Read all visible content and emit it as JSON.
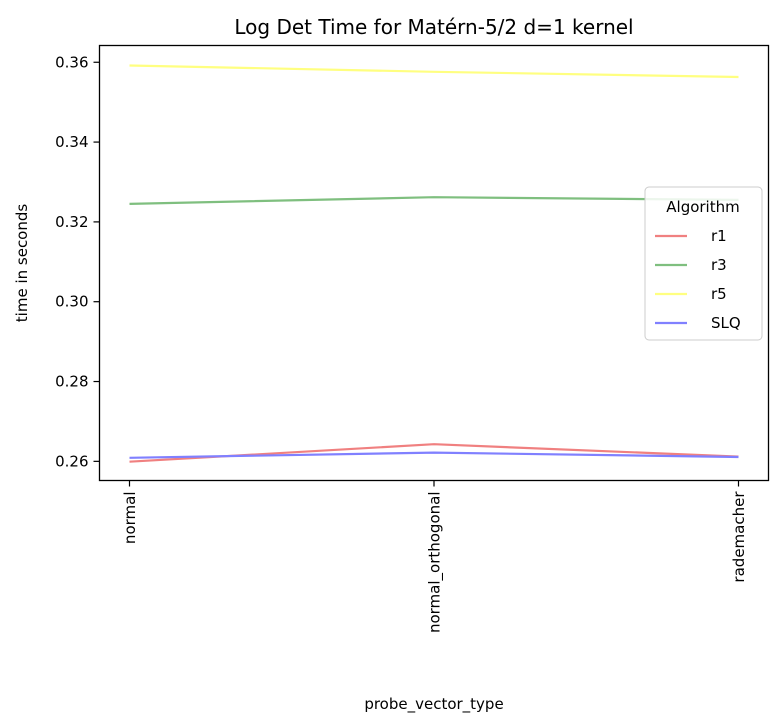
{
  "chart_data": {
    "type": "line",
    "title": "Log Det Time for Matérn-5/2 d=1 kernel",
    "xlabel": "probe_vector_type",
    "ylabel": "time in seconds",
    "categories": [
      "normal",
      "normal_orthogonal",
      "rademacher"
    ],
    "ylim": [
      0.2552,
      0.3642
    ],
    "yticks": [
      0.26,
      0.28,
      0.3,
      0.32,
      0.34,
      0.36
    ],
    "ytick_labels": [
      "0.26",
      "0.28",
      "0.30",
      "0.32",
      "0.34",
      "0.36"
    ],
    "grid": false,
    "legend": {
      "title": "Algorithm",
      "placement": "center-right"
    },
    "series": [
      {
        "name": "r1",
        "color": "#f08080",
        "values": [
          0.2599,
          0.2643,
          0.2612
        ]
      },
      {
        "name": "r3",
        "color": "#7fbf7f",
        "values": [
          0.3245,
          0.3262,
          0.3255
        ]
      },
      {
        "name": "r5",
        "color": "#ffff80",
        "values": [
          0.3592,
          0.3576,
          0.3563
        ]
      },
      {
        "name": "SLQ",
        "color": "#8080ff",
        "values": [
          0.2609,
          0.2622,
          0.2611
        ]
      }
    ]
  }
}
